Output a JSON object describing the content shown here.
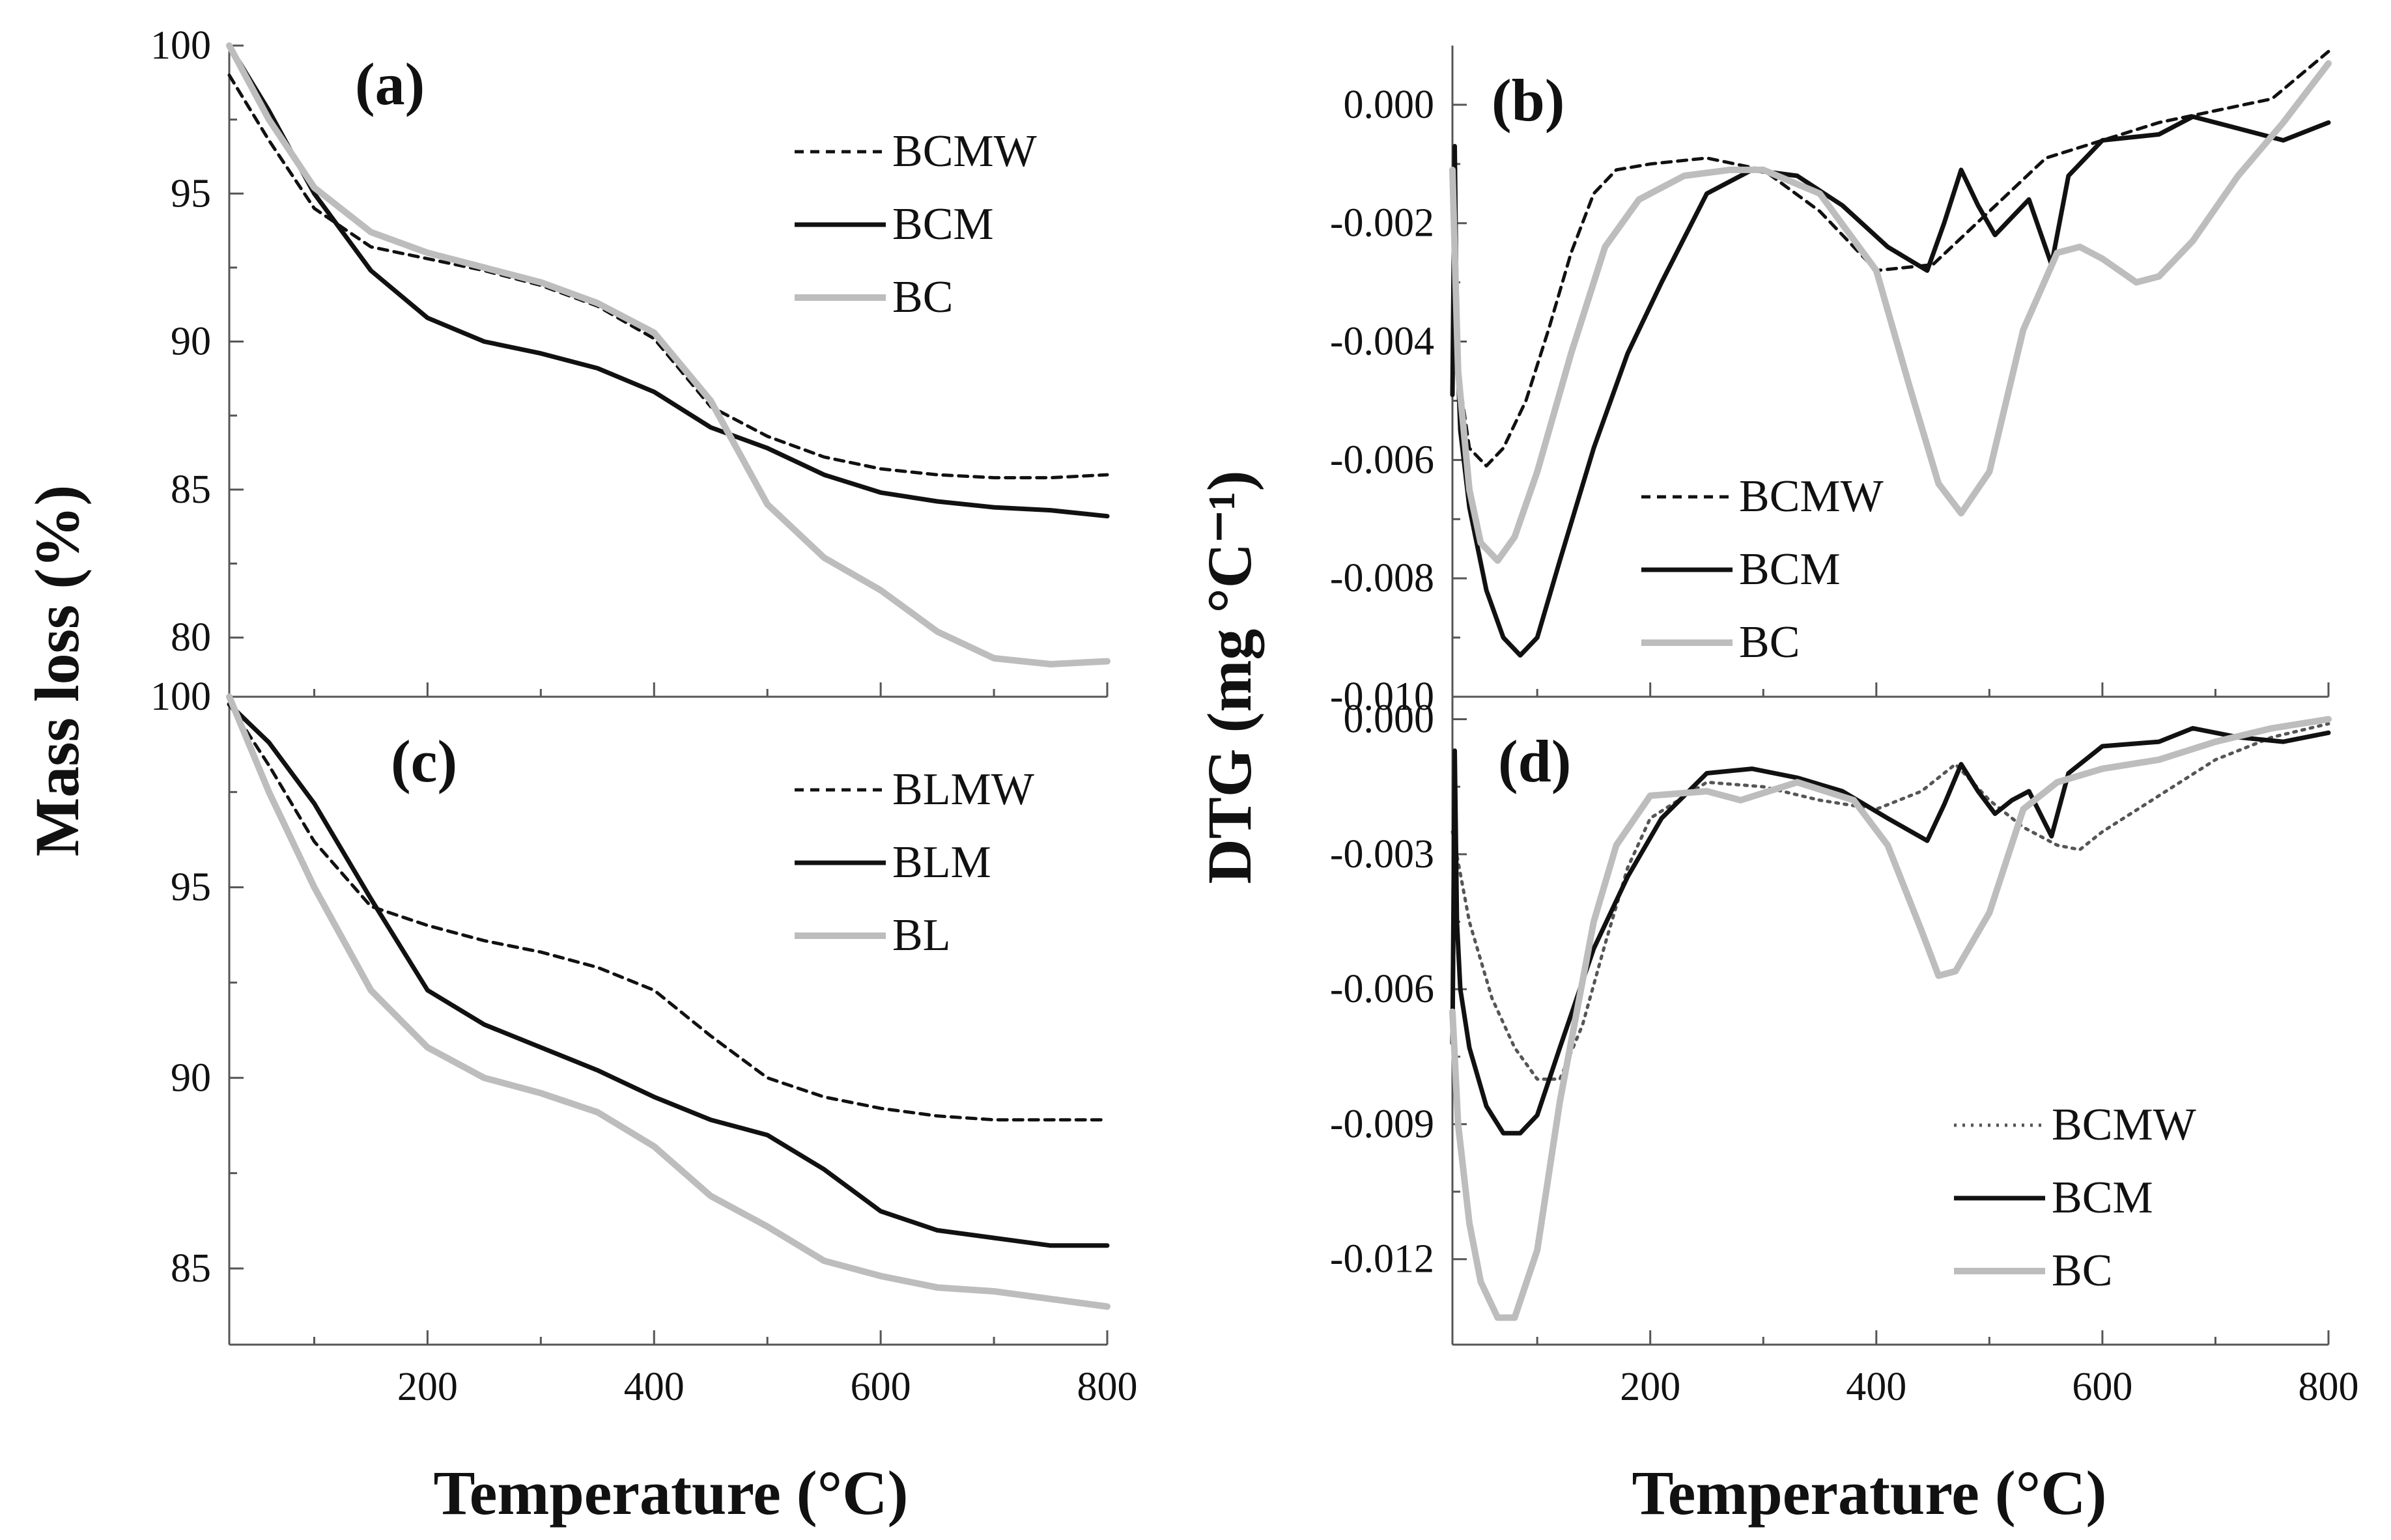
{
  "figure": {
    "ylabel_left": "Mass loss (%)",
    "ylabel_right": "DTG (mg °C⁻¹)",
    "xlabel_left": "Temperature (°C)",
    "xlabel_right": "Temperature (°C)"
  },
  "chart_data": [
    {
      "id": "a",
      "type": "line",
      "panel_label": "(a)",
      "xlim": [
        25,
        800
      ],
      "ylim": [
        78,
        100
      ],
      "xticks": [],
      "yticks": [
        80,
        85,
        90,
        95,
        100
      ],
      "legend_position": "top-right",
      "series": [
        {
          "name": "BCMW",
          "style": "dashed",
          "color": "#111111",
          "x": [
            25,
            60,
            100,
            150,
            200,
            250,
            300,
            350,
            400,
            450,
            500,
            550,
            600,
            650,
            700,
            750,
            800
          ],
          "y": [
            99,
            96.8,
            94.5,
            93.2,
            92.8,
            92.4,
            91.9,
            91.2,
            90.1,
            87.8,
            86.8,
            86.1,
            85.7,
            85.5,
            85.4,
            85.4,
            85.5
          ]
        },
        {
          "name": "BCM",
          "style": "solid",
          "color": "#111111",
          "x": [
            25,
            60,
            100,
            150,
            200,
            250,
            300,
            350,
            400,
            450,
            500,
            550,
            600,
            650,
            700,
            750,
            800
          ],
          "y": [
            100,
            97.8,
            95,
            92.4,
            90.8,
            90,
            89.6,
            89.1,
            88.3,
            87.1,
            86.4,
            85.5,
            84.9,
            84.6,
            84.4,
            84.3,
            84.1
          ]
        },
        {
          "name": "BC",
          "style": "solid",
          "color": "#bdbdbd",
          "x": [
            25,
            60,
            100,
            150,
            200,
            250,
            300,
            350,
            400,
            450,
            500,
            550,
            600,
            650,
            700,
            750,
            800
          ],
          "y": [
            100,
            97.5,
            95.2,
            93.7,
            93,
            92.5,
            92,
            91.3,
            90.3,
            88,
            84.5,
            82.7,
            81.6,
            80.2,
            79.3,
            79.1,
            79.2
          ]
        }
      ]
    },
    {
      "id": "b",
      "type": "line",
      "panel_label": "(b)",
      "xlim": [
        25,
        800
      ],
      "ylim": [
        -0.01,
        0.001
      ],
      "xticks": [],
      "yticks": [
        -0.01,
        -0.008,
        -0.006,
        -0.004,
        -0.002,
        0
      ],
      "ytick_labels": [
        "-0.010",
        "-0.008",
        "-0.006",
        "-0.004",
        "-0.002",
        "0.000"
      ],
      "legend_position": "bottom-center",
      "series": [
        {
          "name": "BCMW",
          "style": "dashed",
          "color": "#111111",
          "x": [
            25,
            30,
            40,
            55,
            70,
            90,
            110,
            130,
            150,
            170,
            200,
            250,
            300,
            350,
            400,
            450,
            500,
            550,
            600,
            650,
            700,
            750,
            800
          ],
          "y": [
            -0.0012,
            -0.0045,
            -0.0058,
            -0.0061,
            -0.0058,
            -0.005,
            -0.0038,
            -0.0025,
            -0.0015,
            -0.0011,
            -0.001,
            -0.0009,
            -0.0011,
            -0.0018,
            -0.0028,
            -0.0027,
            -0.0018,
            -0.0009,
            -0.0006,
            -0.0003,
            -0.0001,
            0.0001,
            0.0009
          ]
        },
        {
          "name": "BCM",
          "style": "solid",
          "color": "#111111",
          "x": [
            25,
            27,
            29,
            32,
            40,
            55,
            70,
            85,
            100,
            120,
            150,
            180,
            210,
            250,
            290,
            330,
            370,
            410,
            445,
            460,
            475,
            490,
            505,
            520,
            535,
            555,
            570,
            600,
            650,
            680,
            720,
            760,
            800
          ],
          "y": [
            -0.0049,
            -0.0007,
            -0.004,
            -0.0055,
            -0.0068,
            -0.0082,
            -0.009,
            -0.0093,
            -0.009,
            -0.0077,
            -0.0058,
            -0.0042,
            -0.003,
            -0.0015,
            -0.0011,
            -0.0012,
            -0.0017,
            -0.0024,
            -0.0028,
            -0.002,
            -0.0011,
            -0.0017,
            -0.0022,
            -0.0019,
            -0.0016,
            -0.0027,
            -0.0012,
            -0.0006,
            -0.0005,
            -0.0002,
            -0.0004,
            -0.0006,
            -0.0003
          ]
        },
        {
          "name": "BC",
          "style": "solid",
          "color": "#bdbdbd",
          "x": [
            25,
            30,
            40,
            50,
            65,
            80,
            100,
            130,
            160,
            190,
            230,
            270,
            300,
            350,
            400,
            430,
            455,
            475,
            500,
            530,
            560,
            580,
            600,
            630,
            650,
            680,
            720,
            760,
            800
          ],
          "y": [
            -0.0011,
            -0.0045,
            -0.0065,
            -0.0074,
            -0.0077,
            -0.0073,
            -0.0062,
            -0.0042,
            -0.0024,
            -0.0016,
            -0.0012,
            -0.0011,
            -0.0011,
            -0.0015,
            -0.0028,
            -0.0048,
            -0.0064,
            -0.0069,
            -0.0062,
            -0.0038,
            -0.0025,
            -0.0024,
            -0.0026,
            -0.003,
            -0.0029,
            -0.0023,
            -0.0012,
            -0.0003,
            0.0007
          ]
        }
      ]
    },
    {
      "id": "c",
      "type": "line",
      "panel_label": "(c)",
      "xlim": [
        25,
        800
      ],
      "ylim": [
        83,
        100
      ],
      "xticks": [
        200,
        400,
        600,
        800
      ],
      "yticks": [
        85,
        90,
        95,
        100
      ],
      "legend_position": "top-right",
      "series": [
        {
          "name": "BLMW",
          "style": "dashed",
          "color": "#111111",
          "x": [
            25,
            60,
            100,
            150,
            200,
            250,
            300,
            350,
            400,
            450,
            500,
            550,
            600,
            650,
            700,
            750,
            800
          ],
          "y": [
            99.8,
            98.2,
            96.2,
            94.5,
            94,
            93.6,
            93.3,
            92.9,
            92.3,
            91.1,
            90,
            89.5,
            89.2,
            89,
            88.9,
            88.9,
            88.9
          ]
        },
        {
          "name": "BLM",
          "style": "solid",
          "color": "#111111",
          "x": [
            25,
            60,
            100,
            150,
            200,
            250,
            300,
            350,
            400,
            450,
            500,
            550,
            600,
            650,
            700,
            750,
            800
          ],
          "y": [
            99.8,
            98.8,
            97.2,
            94.7,
            92.3,
            91.4,
            90.8,
            90.2,
            89.5,
            88.9,
            88.5,
            87.6,
            86.5,
            86,
            85.8,
            85.6,
            85.6
          ]
        },
        {
          "name": "BL",
          "style": "solid",
          "color": "#bdbdbd",
          "x": [
            25,
            60,
            100,
            150,
            200,
            250,
            300,
            350,
            400,
            450,
            500,
            550,
            600,
            650,
            700,
            750,
            800
          ],
          "y": [
            100,
            97.5,
            95,
            92.3,
            90.8,
            90,
            89.6,
            89.1,
            88.2,
            86.9,
            86.1,
            85.2,
            84.8,
            84.5,
            84.4,
            84.2,
            84
          ]
        }
      ]
    },
    {
      "id": "d",
      "type": "line",
      "panel_label": "(d)",
      "xlim": [
        25,
        800
      ],
      "ylim": [
        -0.0139,
        0.0005
      ],
      "xticks": [
        200,
        400,
        600,
        800
      ],
      "yticks": [
        -0.012,
        -0.009,
        -0.006,
        -0.003,
        0
      ],
      "ytick_labels": [
        "-0.012",
        "-0.009",
        "-0.006",
        "-0.003",
        "0.000"
      ],
      "legend_position": "bottom-right",
      "series": [
        {
          "name": "BCMW",
          "style": "dotted",
          "color": "#555555",
          "x": [
            25,
            40,
            60,
            80,
            100,
            120,
            140,
            160,
            180,
            200,
            250,
            300,
            350,
            400,
            440,
            470,
            500,
            530,
            560,
            580,
            600,
            650,
            700,
            750,
            800
          ],
          "y": [
            -0.0025,
            -0.0045,
            -0.0062,
            -0.0073,
            -0.008,
            -0.008,
            -0.0068,
            -0.005,
            -0.0033,
            -0.0022,
            -0.0014,
            -0.0015,
            -0.0018,
            -0.002,
            -0.0016,
            -0.001,
            -0.0018,
            -0.0024,
            -0.0028,
            -0.0029,
            -0.0025,
            -0.0017,
            -0.0009,
            -0.0004,
            -0.0001
          ]
        },
        {
          "name": "BCM",
          "style": "solid",
          "color": "#111111",
          "x": [
            25,
            27,
            29,
            32,
            40,
            55,
            70,
            85,
            100,
            120,
            150,
            180,
            210,
            250,
            290,
            330,
            370,
            410,
            445,
            460,
            475,
            490,
            505,
            520,
            535,
            555,
            570,
            600,
            650,
            680,
            720,
            760,
            800
          ],
          "y": [
            -0.0072,
            -0.0007,
            -0.0045,
            -0.006,
            -0.0073,
            -0.0086,
            -0.0092,
            -0.0092,
            -0.0088,
            -0.0073,
            -0.0051,
            -0.0035,
            -0.0022,
            -0.0012,
            -0.0011,
            -0.0013,
            -0.0016,
            -0.0022,
            -0.0027,
            -0.0019,
            -0.001,
            -0.0016,
            -0.0021,
            -0.0018,
            -0.0016,
            -0.0026,
            -0.0012,
            -0.0006,
            -0.0005,
            -0.0002,
            -0.0004,
            -0.0005,
            -0.0003
          ]
        },
        {
          "name": "BC",
          "style": "solid",
          "color": "#bdbdbd",
          "x": [
            25,
            30,
            40,
            50,
            65,
            80,
            100,
            120,
            150,
            170,
            200,
            250,
            280,
            330,
            380,
            410,
            440,
            455,
            470,
            500,
            530,
            560,
            600,
            650,
            700,
            750,
            800
          ],
          "y": [
            -0.0065,
            -0.009,
            -0.0112,
            -0.0125,
            -0.0133,
            -0.0133,
            -0.0118,
            -0.0085,
            -0.0045,
            -0.0028,
            -0.0017,
            -0.0016,
            -0.0018,
            -0.0014,
            -0.0018,
            -0.0028,
            -0.0047,
            -0.0057,
            -0.0056,
            -0.0043,
            -0.002,
            -0.0014,
            -0.0011,
            -0.0009,
            -0.0005,
            -0.0002,
            0
          ]
        }
      ]
    }
  ]
}
